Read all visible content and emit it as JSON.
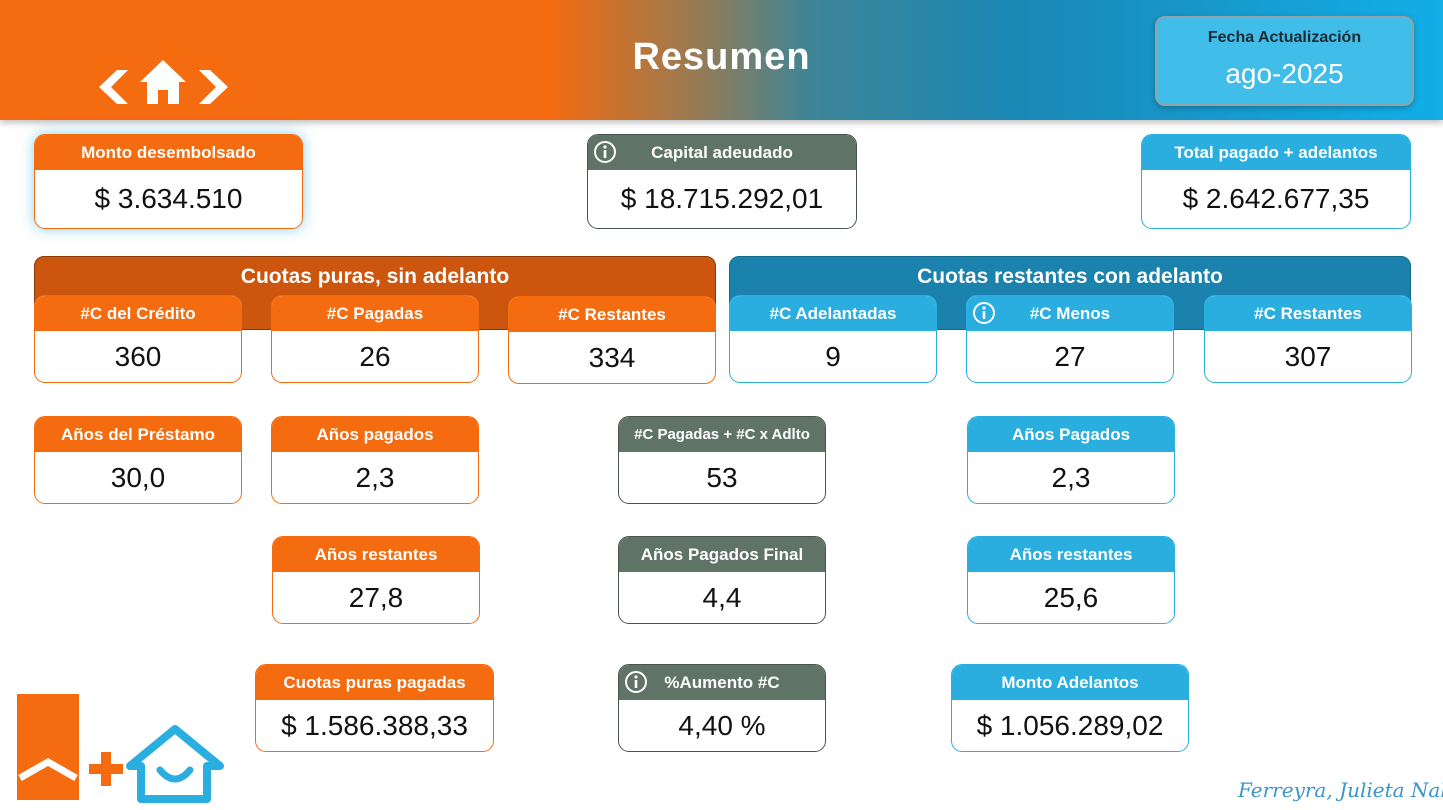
{
  "header": {
    "title": "Resumen",
    "date_label": "Fecha Actualización",
    "date_value": "ago-2025"
  },
  "colors": {
    "orange": "#f46b10",
    "dark_orange": "#cc560e",
    "gray_green": "#5f7466",
    "blue": "#2aaee0",
    "dark_blue": "#1a82ac"
  },
  "icons": [
    "chevron-left-icon",
    "home-icon",
    "chevron-right-icon",
    "info-icon",
    "brand-logo-icon"
  ],
  "top": {
    "monto_desembolsado": {
      "label": "Monto desembolsado",
      "value": "$ 3.634.510"
    },
    "capital_adeudado": {
      "label": "Capital adeudado",
      "value": "$ 18.715.292,01"
    },
    "total_pagado": {
      "label": "Total pagado + adelantos",
      "value": "$ 2.642.677,35"
    }
  },
  "sections": {
    "left_title": "Cuotas puras, sin adelanto",
    "right_title": "Cuotas restantes con adelanto"
  },
  "cuotas_puras": {
    "credito": {
      "label": "#C del Crédito",
      "value": "360"
    },
    "pagadas": {
      "label": "#C Pagadas",
      "value": "26"
    },
    "restantes": {
      "label": "#C Restantes",
      "value": "334"
    }
  },
  "cuotas_adelanto": {
    "adelantadas": {
      "label": "#C Adelantadas",
      "value": "9"
    },
    "menos": {
      "label": "#C Menos",
      "value": "27"
    },
    "restantes": {
      "label": "#C Restantes",
      "value": "307"
    }
  },
  "metrics": {
    "anios_prestamo": {
      "label": "Años del Préstamo",
      "value": "30,0"
    },
    "anios_pagados_puros": {
      "label": "Años pagados",
      "value": "2,3"
    },
    "pagadas_mas_adelanto": {
      "label": "#C Pagadas + #C x Adlto",
      "value": "53"
    },
    "anios_pagados_adelanto": {
      "label": "Años Pagados",
      "value": "2,3"
    },
    "anios_restantes_puros": {
      "label": "Años restantes",
      "value": "27,8"
    },
    "anios_pagados_final": {
      "label": "Años Pagados Final",
      "value": "4,4"
    },
    "anios_restantes_adelanto": {
      "label": "Años restantes",
      "value": "25,6"
    },
    "cuotas_puras_pagadas": {
      "label": "Cuotas puras pagadas",
      "value": "$ 1.586.388,33"
    },
    "aumento": {
      "label": "%Aumento #C",
      "value": "4,40 %"
    },
    "monto_adelantos": {
      "label": "Monto Adelantos",
      "value": "$ 1.056.289,02"
    }
  },
  "footer": {
    "signature": "Ferreyra, Julieta Nahir"
  }
}
